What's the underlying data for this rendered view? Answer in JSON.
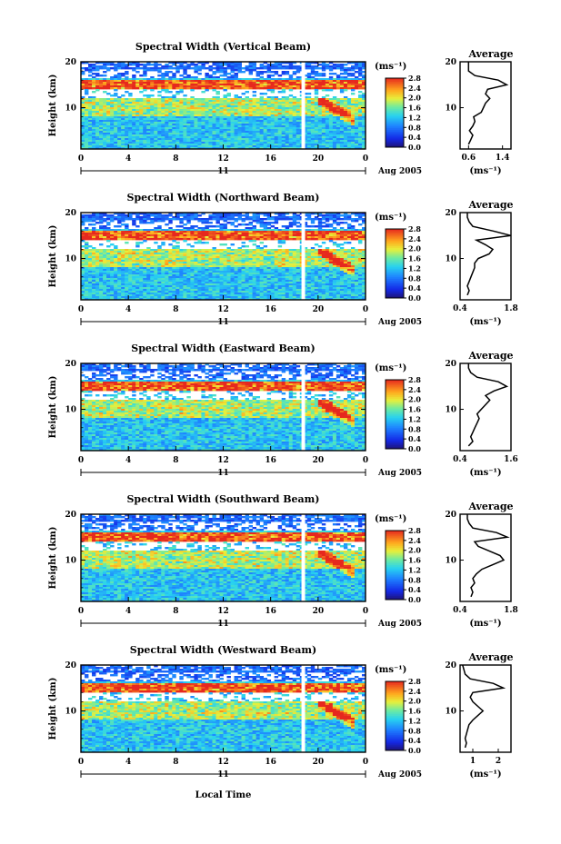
{
  "chart_data": [
    {
      "type": "heatmap",
      "title": "Spectral Width (Vertical Beam)",
      "ylabel": "Height (km)",
      "xticks": [
        "0",
        "4",
        "8",
        "12",
        "16",
        "20",
        "0"
      ],
      "yticks": [
        "10",
        "20"
      ],
      "xlim": [
        0,
        24
      ],
      "ylim": [
        1,
        20
      ],
      "date_label": "11",
      "month_label": "Aug 2005",
      "colorbar": {
        "unit": "(ms⁻¹)",
        "ticks": [
          "2.8",
          "2.4",
          "2.0",
          "1.6",
          "1.2",
          "0.8",
          "0.4",
          "0.0"
        ],
        "range": [
          0.0,
          2.8
        ]
      },
      "profile": {
        "title": "Average",
        "xlabel": "(ms⁻¹)",
        "xticks": [
          "0.6",
          "1.4"
        ],
        "xlim": [
          0.4,
          1.6
        ],
        "height": [
          2,
          3,
          4,
          5,
          6,
          7,
          8,
          9,
          10,
          11,
          12,
          13,
          14,
          15,
          16,
          17,
          18,
          19,
          20
        ],
        "width": [
          0.6,
          0.65,
          0.7,
          0.62,
          0.7,
          0.75,
          0.72,
          0.9,
          0.95,
          1.0,
          1.1,
          1.0,
          1.05,
          1.5,
          1.3,
          0.75,
          0.6,
          0.6,
          0.6
        ]
      }
    },
    {
      "type": "heatmap",
      "title": "Spectral Width (Northward Beam)",
      "ylabel": "Height (km)",
      "xticks": [
        "0",
        "4",
        "8",
        "12",
        "16",
        "20",
        "0"
      ],
      "yticks": [
        "10",
        "20"
      ],
      "xlim": [
        0,
        24
      ],
      "ylim": [
        1,
        20
      ],
      "date_label": "11",
      "month_label": "Aug 2005",
      "colorbar": {
        "unit": "(ms⁻¹)",
        "ticks": [
          "2.8",
          "2.4",
          "2.0",
          "1.6",
          "1.2",
          "0.8",
          "0.4",
          "0.0"
        ],
        "range": [
          0.0,
          2.8
        ]
      },
      "profile": {
        "title": "Average",
        "xlabel": "(ms⁻¹)",
        "xticks": [
          "0.4",
          "1.8"
        ],
        "xlim": [
          0.4,
          1.8
        ],
        "height": [
          2,
          3,
          4,
          5,
          6,
          7,
          8,
          9,
          10,
          11,
          12,
          13,
          14,
          15,
          16,
          17,
          18,
          19,
          20
        ],
        "width": [
          0.6,
          0.65,
          0.6,
          0.65,
          0.7,
          0.75,
          0.8,
          0.8,
          0.9,
          1.2,
          1.3,
          1.1,
          0.85,
          1.8,
          1.3,
          0.75,
          0.65,
          0.6,
          0.6
        ]
      }
    },
    {
      "type": "heatmap",
      "title": "Spectral Width (Eastward Beam)",
      "ylabel": "Height (km)",
      "xticks": [
        "0",
        "4",
        "8",
        "12",
        "16",
        "20",
        "0"
      ],
      "yticks": [
        "10",
        "20"
      ],
      "xlim": [
        0,
        24
      ],
      "ylim": [
        1,
        20
      ],
      "date_label": "11",
      "month_label": "Aug 2005",
      "colorbar": {
        "unit": "(ms⁻¹)",
        "ticks": [
          "2.8",
          "2.4",
          "2.0",
          "1.6",
          "1.2",
          "0.8",
          "0.4",
          "0.0"
        ],
        "range": [
          0.0,
          2.8
        ]
      },
      "profile": {
        "title": "Average",
        "xlabel": "(ms⁻¹)",
        "xticks": [
          "0.4",
          "1.6"
        ],
        "xlim": [
          0.4,
          1.6
        ],
        "height": [
          2,
          3,
          4,
          5,
          6,
          7,
          8,
          9,
          10,
          11,
          12,
          13,
          14,
          15,
          16,
          17,
          18,
          19,
          20
        ],
        "width": [
          0.6,
          0.7,
          0.65,
          0.7,
          0.75,
          0.8,
          0.85,
          0.8,
          0.9,
          1.0,
          1.1,
          1.0,
          1.2,
          1.5,
          1.3,
          0.8,
          0.65,
          0.6,
          0.6
        ]
      }
    },
    {
      "type": "heatmap",
      "title": "Spectral Width (Southward Beam)",
      "ylabel": "Height (km)",
      "xticks": [
        "0",
        "4",
        "8",
        "12",
        "16",
        "20",
        "0"
      ],
      "yticks": [
        "10",
        "20"
      ],
      "xlim": [
        0,
        24
      ],
      "ylim": [
        1,
        20
      ],
      "date_label": "11",
      "month_label": "Aug 2005",
      "colorbar": {
        "unit": "(ms⁻¹)",
        "ticks": [
          "2.8",
          "2.4",
          "2.0",
          "1.6",
          "1.2",
          "0.8",
          "0.4",
          "0.0"
        ],
        "range": [
          0.0,
          2.8
        ]
      },
      "profile": {
        "title": "Average",
        "xlabel": "(ms⁻¹)",
        "xticks": [
          "0.4",
          "1.8"
        ],
        "xlim": [
          0.4,
          1.8
        ],
        "height": [
          2,
          3,
          4,
          5,
          6,
          7,
          8,
          9,
          10,
          11,
          12,
          13,
          14,
          15,
          16,
          17,
          18,
          19,
          20
        ],
        "width": [
          0.7,
          0.75,
          0.7,
          0.8,
          0.75,
          0.85,
          1.0,
          1.3,
          1.6,
          1.5,
          1.2,
          0.9,
          0.8,
          1.7,
          1.4,
          0.75,
          0.65,
          0.6,
          0.6
        ]
      }
    },
    {
      "type": "heatmap",
      "title": "Spectral Width (Westward Beam)",
      "ylabel": "Height (km)",
      "xticks": [
        "0",
        "4",
        "8",
        "12",
        "16",
        "20",
        "0"
      ],
      "yticks": [
        "10",
        "20"
      ],
      "xlim": [
        0,
        24
      ],
      "ylim": [
        1,
        20
      ],
      "date_label": "11",
      "month_label": "Aug 2005",
      "colorbar": {
        "unit": "(ms⁻¹)",
        "ticks": [
          "2.8",
          "2.4",
          "2.0",
          "1.6",
          "1.2",
          "0.8",
          "0.4",
          "0.0"
        ],
        "range": [
          0.0,
          2.8
        ]
      },
      "profile": {
        "title": "Average",
        "xlabel": "(ms⁻¹)",
        "xticks": [
          "1",
          "2"
        ],
        "xlim": [
          0.5,
          2.5
        ],
        "height": [
          2,
          3,
          4,
          5,
          6,
          7,
          8,
          9,
          10,
          11,
          12,
          13,
          14,
          15,
          16,
          17,
          18,
          19,
          20
        ],
        "width": [
          0.7,
          0.75,
          0.7,
          0.75,
          0.8,
          0.85,
          1.0,
          1.2,
          1.4,
          1.2,
          1.0,
          0.9,
          1.0,
          2.2,
          1.8,
          0.9,
          0.7,
          0.65,
          0.6
        ]
      }
    }
  ],
  "shared_xlabel": "Local Time"
}
